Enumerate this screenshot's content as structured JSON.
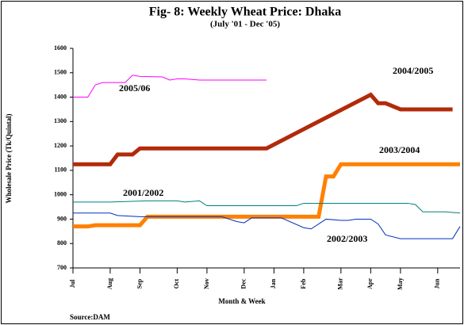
{
  "chart_data": {
    "type": "line",
    "title": "Fig- 8:  Weekly Wheat Price: Dhaka",
    "subtitle": "(July '01 - Dec '05)",
    "y_label": "Wholesale Price (Tk/Quintal)",
    "x_label": "Month & Week",
    "source": "Source:DAM",
    "xlim": [
      0,
      52
    ],
    "xticks": [
      {
        "value": 0,
        "label": "Jul"
      },
      {
        "value": 5,
        "label": "Aug"
      },
      {
        "value": 9,
        "label": "Sep"
      },
      {
        "value": 14,
        "label": "Oct"
      },
      {
        "value": 18,
        "label": "Nov"
      },
      {
        "value": 23,
        "label": "Dec"
      },
      {
        "value": 27,
        "label": "Jan"
      },
      {
        "value": 31,
        "label": "Feb"
      },
      {
        "value": 36,
        "label": "Mar"
      },
      {
        "value": 40,
        "label": "Apr"
      },
      {
        "value": 44,
        "label": "May"
      },
      {
        "value": 49,
        "label": "Jun"
      }
    ],
    "ylim": [
      700,
      1600
    ],
    "yticks": [
      700,
      800,
      900,
      1000,
      1100,
      1200,
      1300,
      1400,
      1500,
      1600
    ],
    "grid": false,
    "series": [
      {
        "name": "2005/06",
        "color": "#ff00ff",
        "x": [
          0,
          2,
          3,
          4,
          7,
          8,
          9,
          12,
          13,
          14,
          15,
          17,
          26
        ],
        "values": [
          1400,
          1400,
          1450,
          1460,
          1460,
          1490,
          1485,
          1483,
          1470,
          1475,
          1475,
          1470,
          1470
        ]
      },
      {
        "name": "2004/2005",
        "color": "#b22a0a",
        "x": [
          0,
          5,
          6,
          8,
          9,
          26,
          40,
          41,
          42,
          44,
          51
        ],
        "values": [
          1125,
          1125,
          1165,
          1165,
          1190,
          1190,
          1410,
          1375,
          1375,
          1350,
          1350
        ]
      },
      {
        "name": "2003/2004",
        "color": "#ff8000",
        "x": [
          0,
          2,
          3,
          9,
          10,
          33,
          34,
          35,
          36,
          52
        ],
        "values": [
          870,
          870,
          875,
          875,
          910,
          910,
          1075,
          1075,
          1125,
          1125
        ]
      },
      {
        "name": "2001/2002",
        "color": "#008080",
        "x": [
          0,
          5,
          10,
          14,
          15,
          17,
          18,
          30,
          31,
          45,
          46,
          47,
          50,
          52
        ],
        "values": [
          970,
          970,
          975,
          975,
          970,
          975,
          955,
          955,
          965,
          965,
          960,
          930,
          930,
          925
        ]
      },
      {
        "name": "2002/2003",
        "color": "#0030c0",
        "x": [
          0,
          5,
          6,
          9,
          20,
          22,
          23,
          24,
          26,
          28,
          31,
          32,
          34,
          36,
          37,
          38,
          40,
          41,
          42,
          44,
          51,
          52
        ],
        "values": [
          925,
          925,
          915,
          910,
          910,
          890,
          885,
          905,
          905,
          905,
          865,
          860,
          900,
          895,
          895,
          900,
          900,
          880,
          835,
          820,
          820,
          870
        ]
      }
    ]
  }
}
